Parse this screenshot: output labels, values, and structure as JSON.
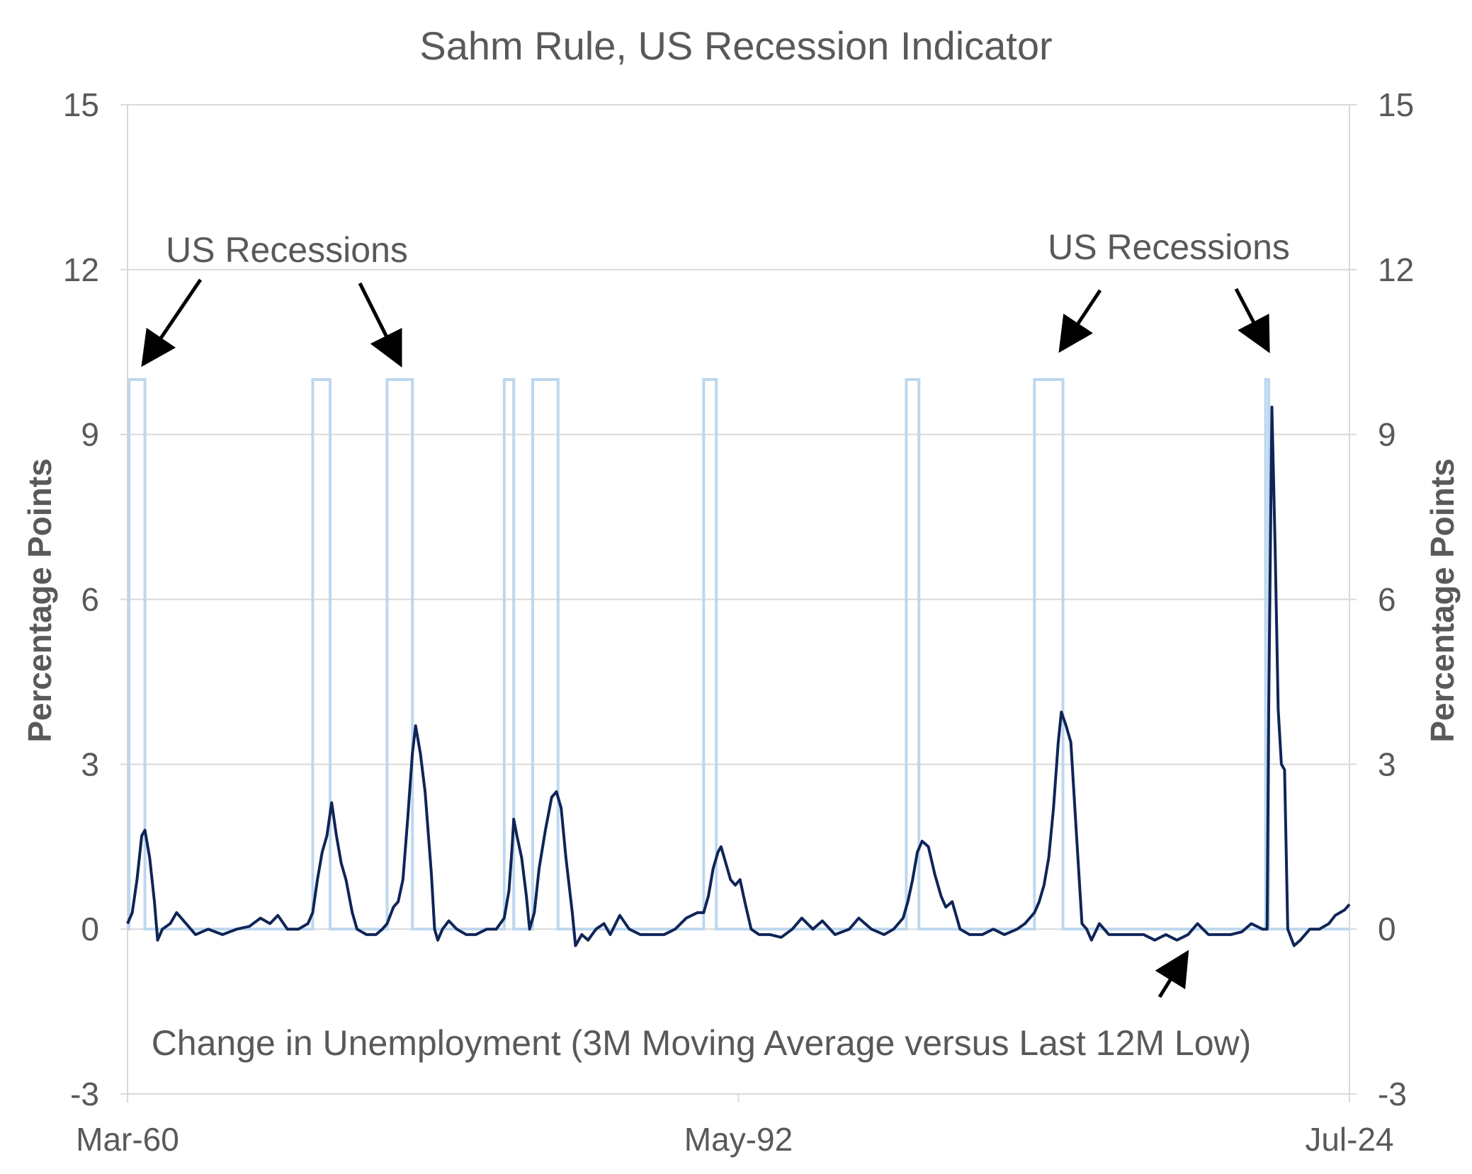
{
  "chart_data": {
    "type": "line",
    "title": "Sahm Rule, US Recession Indicator",
    "ylabel_left": "Percentage   Points",
    "ylabel_right": "Percentage  Points",
    "ylim": [
      -3,
      15
    ],
    "yticks": [
      "-3",
      "0",
      "3",
      "6",
      "9",
      "12",
      "15"
    ],
    "x_range": [
      "1960-03",
      "2024-07"
    ],
    "xtick_labels": [
      {
        "date": "1960-03",
        "label": "Mar-60"
      },
      {
        "date": "1992-05",
        "label": "May-92"
      },
      {
        "date": "2024-07",
        "label": "Jul-24"
      }
    ],
    "grid": true,
    "annotations": [
      {
        "text": "US Recessions",
        "side": "left"
      },
      {
        "text": "US Recessions",
        "side": "right"
      },
      {
        "text": "Change in Unemployment (3M Moving Average versus Last 12M Low)"
      }
    ],
    "series": [
      {
        "key": "recessions",
        "color": "#bdd7ee",
        "style": "step",
        "on_value": 10,
        "periods": [
          [
            "1960-04",
            "1961-02"
          ],
          [
            "1969-12",
            "1970-11"
          ],
          [
            "1973-11",
            "1975-03"
          ],
          [
            "1980-01",
            "1980-07"
          ],
          [
            "1981-07",
            "1982-11"
          ],
          [
            "1990-07",
            "1991-03"
          ],
          [
            "2001-03",
            "2001-11"
          ],
          [
            "2007-12",
            "2009-06"
          ],
          [
            "2020-02",
            "2020-04"
          ]
        ]
      },
      {
        "key": "sahm",
        "color": "#0f2557",
        "style": "line",
        "points": [
          [
            "1960-03",
            0.1
          ],
          [
            "1960-06",
            0.3
          ],
          [
            "1960-09",
            0.9
          ],
          [
            "1960-12",
            1.7
          ],
          [
            "1961-02",
            1.8
          ],
          [
            "1961-05",
            1.3
          ],
          [
            "1961-08",
            0.5
          ],
          [
            "1961-10",
            -0.2
          ],
          [
            "1962-01",
            0.0
          ],
          [
            "1962-06",
            0.1
          ],
          [
            "1962-10",
            0.3
          ],
          [
            "1963-04",
            0.1
          ],
          [
            "1963-10",
            -0.1
          ],
          [
            "1964-06",
            0.0
          ],
          [
            "1965-03",
            -0.1
          ],
          [
            "1965-12",
            0.0
          ],
          [
            "1966-08",
            0.05
          ],
          [
            "1967-03",
            0.2
          ],
          [
            "1967-09",
            0.1
          ],
          [
            "1968-02",
            0.25
          ],
          [
            "1968-08",
            0.0
          ],
          [
            "1969-03",
            0.0
          ],
          [
            "1969-09",
            0.1
          ],
          [
            "1969-12",
            0.3
          ],
          [
            "1970-03",
            0.9
          ],
          [
            "1970-06",
            1.4
          ],
          [
            "1970-09",
            1.7
          ],
          [
            "1970-12",
            2.3
          ],
          [
            "1971-03",
            1.7
          ],
          [
            "1971-06",
            1.2
          ],
          [
            "1971-09",
            0.9
          ],
          [
            "1972-01",
            0.3
          ],
          [
            "1972-04",
            0.0
          ],
          [
            "1972-10",
            -0.1
          ],
          [
            "1973-04",
            -0.1
          ],
          [
            "1973-08",
            0.0
          ],
          [
            "1973-11",
            0.1
          ],
          [
            "1974-03",
            0.4
          ],
          [
            "1974-06",
            0.5
          ],
          [
            "1974-09",
            0.9
          ],
          [
            "1974-12",
            2.0
          ],
          [
            "1975-03",
            3.2
          ],
          [
            "1975-05",
            3.7
          ],
          [
            "1975-08",
            3.2
          ],
          [
            "1975-11",
            2.5
          ],
          [
            "1976-03",
            1.0
          ],
          [
            "1976-05",
            0.0
          ],
          [
            "1976-07",
            -0.2
          ],
          [
            "1976-10",
            0.0
          ],
          [
            "1977-02",
            0.15
          ],
          [
            "1977-07",
            0.0
          ],
          [
            "1978-01",
            -0.1
          ],
          [
            "1978-07",
            -0.1
          ],
          [
            "1979-02",
            0.0
          ],
          [
            "1979-08",
            0.0
          ],
          [
            "1980-01",
            0.2
          ],
          [
            "1980-04",
            0.7
          ],
          [
            "1980-06",
            1.5
          ],
          [
            "1980-07",
            2.0
          ],
          [
            "1980-09",
            1.7
          ],
          [
            "1980-12",
            1.3
          ],
          [
            "1981-03",
            0.6
          ],
          [
            "1981-05",
            0.0
          ],
          [
            "1981-08",
            0.3
          ],
          [
            "1981-11",
            1.1
          ],
          [
            "1982-03",
            1.8
          ],
          [
            "1982-07",
            2.4
          ],
          [
            "1982-10",
            2.5
          ],
          [
            "1983-01",
            2.2
          ],
          [
            "1983-04",
            1.3
          ],
          [
            "1983-08",
            0.3
          ],
          [
            "1983-10",
            -0.3
          ],
          [
            "1984-02",
            -0.1
          ],
          [
            "1984-06",
            -0.2
          ],
          [
            "1984-11",
            0.0
          ],
          [
            "1985-04",
            0.1
          ],
          [
            "1985-08",
            -0.1
          ],
          [
            "1986-02",
            0.25
          ],
          [
            "1986-08",
            0.0
          ],
          [
            "1987-03",
            -0.1
          ],
          [
            "1987-10",
            -0.1
          ],
          [
            "1988-06",
            -0.1
          ],
          [
            "1989-01",
            0.0
          ],
          [
            "1989-08",
            0.2
          ],
          [
            "1990-03",
            0.3
          ],
          [
            "1990-07",
            0.3
          ],
          [
            "1990-10",
            0.6
          ],
          [
            "1991-01",
            1.1
          ],
          [
            "1991-04",
            1.4
          ],
          [
            "1991-06",
            1.5
          ],
          [
            "1991-09",
            1.2
          ],
          [
            "1991-12",
            0.9
          ],
          [
            "1992-03",
            0.8
          ],
          [
            "1992-06",
            0.9
          ],
          [
            "1992-09",
            0.5
          ],
          [
            "1993-01",
            0.0
          ],
          [
            "1993-06",
            -0.1
          ],
          [
            "1994-01",
            -0.1
          ],
          [
            "1994-08",
            -0.15
          ],
          [
            "1995-03",
            0.0
          ],
          [
            "1995-09",
            0.2
          ],
          [
            "1996-04",
            0.0
          ],
          [
            "1996-10",
            0.15
          ],
          [
            "1997-06",
            -0.1
          ],
          [
            "1998-03",
            0.0
          ],
          [
            "1998-09",
            0.2
          ],
          [
            "1999-05",
            0.0
          ],
          [
            "2000-01",
            -0.1
          ],
          [
            "2000-07",
            0.0
          ],
          [
            "2001-01",
            0.2
          ],
          [
            "2001-04",
            0.5
          ],
          [
            "2001-07",
            0.9
          ],
          [
            "2001-10",
            1.4
          ],
          [
            "2002-01",
            1.6
          ],
          [
            "2002-05",
            1.5
          ],
          [
            "2002-09",
            1.0
          ],
          [
            "2003-01",
            0.6
          ],
          [
            "2003-04",
            0.4
          ],
          [
            "2003-08",
            0.5
          ],
          [
            "2004-01",
            0.0
          ],
          [
            "2004-07",
            -0.1
          ],
          [
            "2005-03",
            -0.1
          ],
          [
            "2005-10",
            0.0
          ],
          [
            "2006-05",
            -0.1
          ],
          [
            "2007-01",
            0.0
          ],
          [
            "2007-06",
            0.1
          ],
          [
            "2007-12",
            0.3
          ],
          [
            "2008-03",
            0.5
          ],
          [
            "2008-06",
            0.8
          ],
          [
            "2008-09",
            1.3
          ],
          [
            "2008-12",
            2.2
          ],
          [
            "2009-03",
            3.4
          ],
          [
            "2009-05",
            3.95
          ],
          [
            "2009-08",
            3.7
          ],
          [
            "2009-11",
            3.4
          ],
          [
            "2010-03",
            1.5
          ],
          [
            "2010-06",
            0.1
          ],
          [
            "2010-09",
            0.0
          ],
          [
            "2010-12",
            -0.2
          ],
          [
            "2011-05",
            0.1
          ],
          [
            "2011-11",
            -0.1
          ],
          [
            "2012-06",
            -0.1
          ],
          [
            "2013-02",
            -0.1
          ],
          [
            "2013-09",
            -0.1
          ],
          [
            "2014-04",
            -0.2
          ],
          [
            "2014-11",
            -0.1
          ],
          [
            "2015-06",
            -0.2
          ],
          [
            "2016-01",
            -0.1
          ],
          [
            "2016-07",
            0.1
          ],
          [
            "2017-02",
            -0.1
          ],
          [
            "2017-09",
            -0.1
          ],
          [
            "2018-04",
            -0.1
          ],
          [
            "2018-11",
            -0.05
          ],
          [
            "2019-05",
            0.1
          ],
          [
            "2019-12",
            0.0
          ],
          [
            "2020-03",
            0.0
          ],
          [
            "2020-04",
            4.0
          ],
          [
            "2020-06",
            9.5
          ],
          [
            "2020-08",
            7.0
          ],
          [
            "2020-10",
            4.0
          ],
          [
            "2020-12",
            3.0
          ],
          [
            "2021-02",
            2.9
          ],
          [
            "2021-04",
            0.0
          ],
          [
            "2021-08",
            -0.3
          ],
          [
            "2021-12",
            -0.2
          ],
          [
            "2022-06",
            0.0
          ],
          [
            "2022-12",
            0.0
          ],
          [
            "2023-06",
            0.1
          ],
          [
            "2023-10",
            0.25
          ],
          [
            "2024-01",
            0.3
          ],
          [
            "2024-04",
            0.35
          ],
          [
            "2024-07",
            0.45
          ]
        ]
      }
    ]
  }
}
